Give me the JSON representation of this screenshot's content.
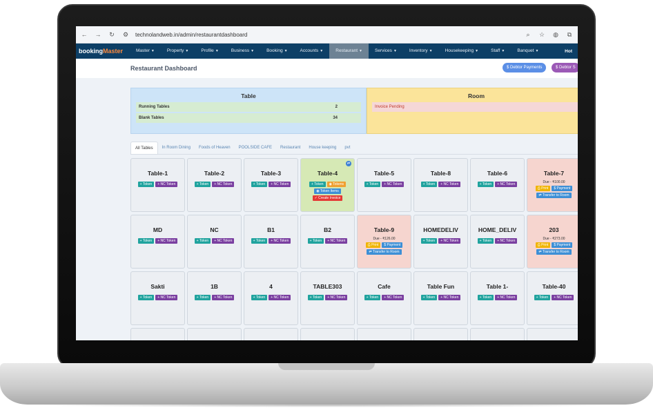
{
  "browser": {
    "url": "technolandweb.in/admin/restaurantdashboard"
  },
  "nav": {
    "brand_a": "booking",
    "brand_b": "Master",
    "items": [
      "Master",
      "Property",
      "Profile",
      "Business",
      "Booking",
      "Accounts",
      "Restaurant",
      "Services",
      "Inventory",
      "Housekeeping",
      "Staff",
      "Banquet"
    ],
    "right": "Hot"
  },
  "header": {
    "title": "Restaurant Dashboard",
    "debtor_payments": "$ Debtor Payments",
    "debtor_s": "$ Debtor S"
  },
  "summary": {
    "table_title": "Table",
    "running_label": "Running Tables",
    "running_value": "2",
    "blank_label": "Blank Tables",
    "blank_value": "34",
    "room_title": "Room",
    "invoice_pending": "Invoice Pending"
  },
  "tabs": [
    "All Tables",
    "In Room Dining",
    "Foods of Heaven",
    "POOLSIDE CAFE",
    "Restaurant",
    "House keeping",
    "pvt"
  ],
  "buttons": {
    "token": "+ Token",
    "nc_token": "+ NC Token",
    "tokens": "◉ Tokens",
    "token_items": "◉ Token Items",
    "create_invoice": "✓ Create Invoice",
    "print": "⎙ Print",
    "payment": "$ Payment",
    "transfer": "⇄ Transfer to Room"
  },
  "tables": [
    {
      "name": "Table-1",
      "state": "free"
    },
    {
      "name": "Table-2",
      "state": "free"
    },
    {
      "name": "Table-3",
      "state": "free"
    },
    {
      "name": "Table-4",
      "state": "running"
    },
    {
      "name": "Table-5",
      "state": "free"
    },
    {
      "name": "Table-8",
      "state": "free"
    },
    {
      "name": "Table-6",
      "state": "free"
    },
    {
      "name": "Table-7",
      "state": "due",
      "due": "Due - ₹100.00"
    },
    {
      "name": "MD",
      "state": "free"
    },
    {
      "name": "NC",
      "state": "free"
    },
    {
      "name": "B1",
      "state": "free"
    },
    {
      "name": "B2",
      "state": "free"
    },
    {
      "name": "Table-9",
      "state": "due",
      "due": "Due - ₹126.00"
    },
    {
      "name": "HOMEDELIV",
      "state": "free"
    },
    {
      "name": "HOME_DELIV",
      "state": "free"
    },
    {
      "name": "203",
      "state": "due",
      "due": "Due - ₹273.00"
    },
    {
      "name": "Sakti",
      "state": "free"
    },
    {
      "name": "1B",
      "state": "free"
    },
    {
      "name": "4",
      "state": "free"
    },
    {
      "name": "TABLE303",
      "state": "free"
    },
    {
      "name": "Cafe",
      "state": "free"
    },
    {
      "name": "Table Fun",
      "state": "free"
    },
    {
      "name": "Table 1-",
      "state": "free"
    },
    {
      "name": "Table-40",
      "state": "free"
    }
  ]
}
